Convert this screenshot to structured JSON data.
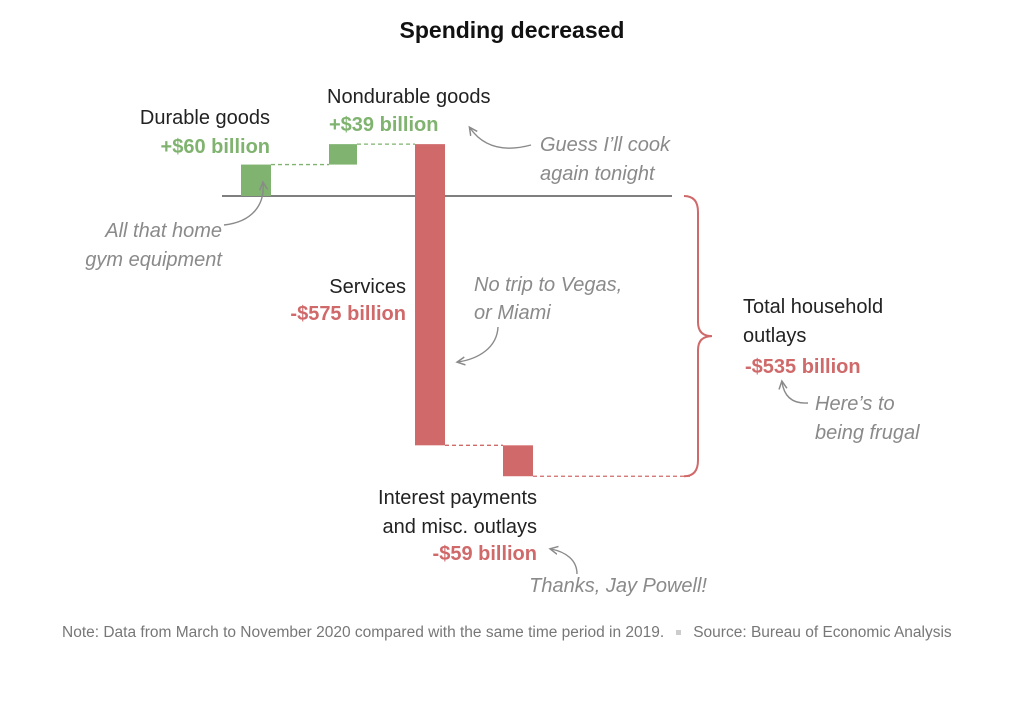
{
  "chart_data": {
    "type": "waterfall",
    "title": "Spending decreased",
    "unit": "billion USD",
    "baseline": 0,
    "steps": [
      {
        "name": "Durable goods",
        "value_label": "+$60 billion",
        "value": 60,
        "start": 0,
        "end": 60,
        "direction": "up"
      },
      {
        "name": "Nondurable goods",
        "value_label": "+$39 billion",
        "value": 39,
        "start": 60,
        "end": 99,
        "direction": "up"
      },
      {
        "name": "Services",
        "value_label": "-$575 billion",
        "value": -575,
        "start": 99,
        "end": -476,
        "direction": "down"
      },
      {
        "name_line1": "Interest payments",
        "name_line2": "and misc. outlays",
        "value_label": "-$59 billion",
        "value": -59,
        "start": -476,
        "end": -535,
        "direction": "down"
      }
    ],
    "total": {
      "name_line1": "Total household",
      "name_line2": "outlays",
      "value_label": "-$535 billion",
      "value": -535
    },
    "annotations": {
      "durable": [
        "All that home",
        "gym equipment"
      ],
      "nondurable": [
        "Guess I’ll cook",
        "again tonight"
      ],
      "services": [
        "No trip to Vegas,",
        "or Miami"
      ],
      "total": [
        "Here’s to",
        "being frugal"
      ],
      "interest": "Thanks, Jay Powell!"
    }
  },
  "colors": {
    "positive": "#7fb36f",
    "negative": "#d0696a",
    "text": "#222222",
    "annotation": "#8a8a8a",
    "axis": "#333333"
  },
  "footnote": {
    "note": "Note: Data from March to November 2020 compared with the same time period in 2019.",
    "source": "Source: Bureau of Economic Analysis"
  }
}
